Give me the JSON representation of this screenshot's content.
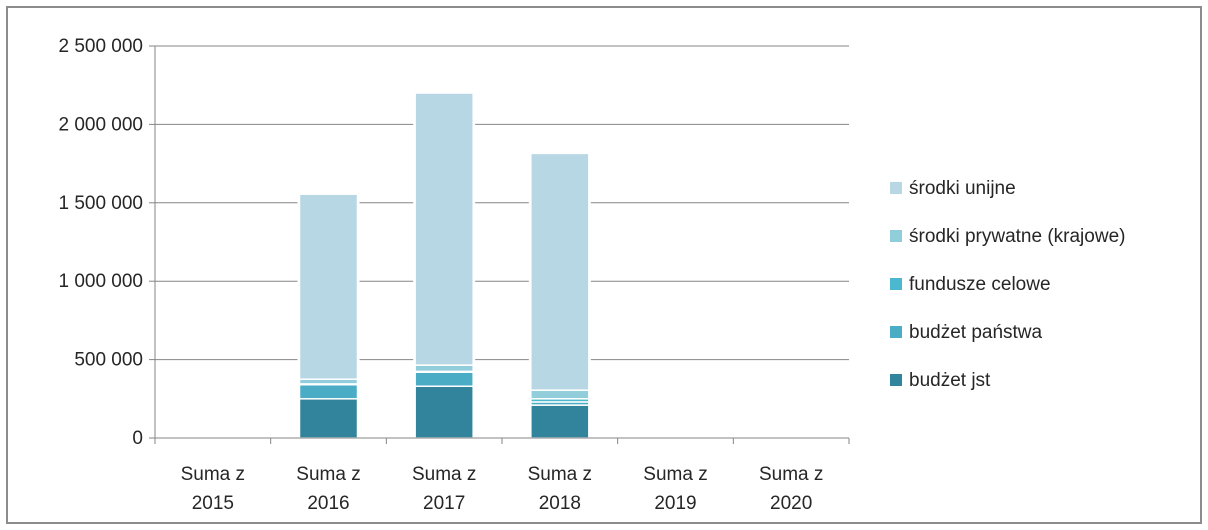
{
  "chart_data": {
    "type": "bar",
    "stacked": true,
    "title": "",
    "xlabel": "",
    "ylabel": "",
    "ylim": [
      0,
      2500000
    ],
    "yticks": [
      0,
      500000,
      1000000,
      1500000,
      2000000,
      2500000
    ],
    "ytick_labels": [
      "0",
      "500 000",
      "1 000 000",
      "1 500 000",
      "2 000 000",
      "2 500 000"
    ],
    "grid": true,
    "legend_position": "right",
    "categories": [
      {
        "line1": "Suma z",
        "line2": "2015"
      },
      {
        "line1": "Suma z",
        "line2": "2016"
      },
      {
        "line1": "Suma z",
        "line2": "2017"
      },
      {
        "line1": "Suma z",
        "line2": "2018"
      },
      {
        "line1": "Suma z",
        "line2": "2019"
      },
      {
        "line1": "Suma z",
        "line2": "2020"
      }
    ],
    "series": [
      {
        "name": "budżet jst",
        "color": "#31849b",
        "values": [
          0,
          250000,
          330000,
          210000,
          0,
          0
        ]
      },
      {
        "name": "budżet państwa",
        "color": "#4bacc6",
        "values": [
          0,
          90000,
          90000,
          20000,
          0,
          0
        ]
      },
      {
        "name": "fundusze celowe",
        "color": "#4bb8cf",
        "values": [
          0,
          5000,
          5000,
          20000,
          0,
          0
        ]
      },
      {
        "name": "środki prywatne (krajowe)",
        "color": "#92cddc",
        "values": [
          0,
          30000,
          40000,
          55000,
          0,
          0
        ]
      },
      {
        "name": "środki unijne",
        "color": "#b7d7e4",
        "values": [
          0,
          1180000,
          1735000,
          1510000,
          0,
          0
        ]
      }
    ],
    "legend_order": [
      "środki unijne",
      "środki prywatne (krajowe)",
      "fundusze celowe",
      "budżet państwa",
      "budżet jst"
    ]
  }
}
